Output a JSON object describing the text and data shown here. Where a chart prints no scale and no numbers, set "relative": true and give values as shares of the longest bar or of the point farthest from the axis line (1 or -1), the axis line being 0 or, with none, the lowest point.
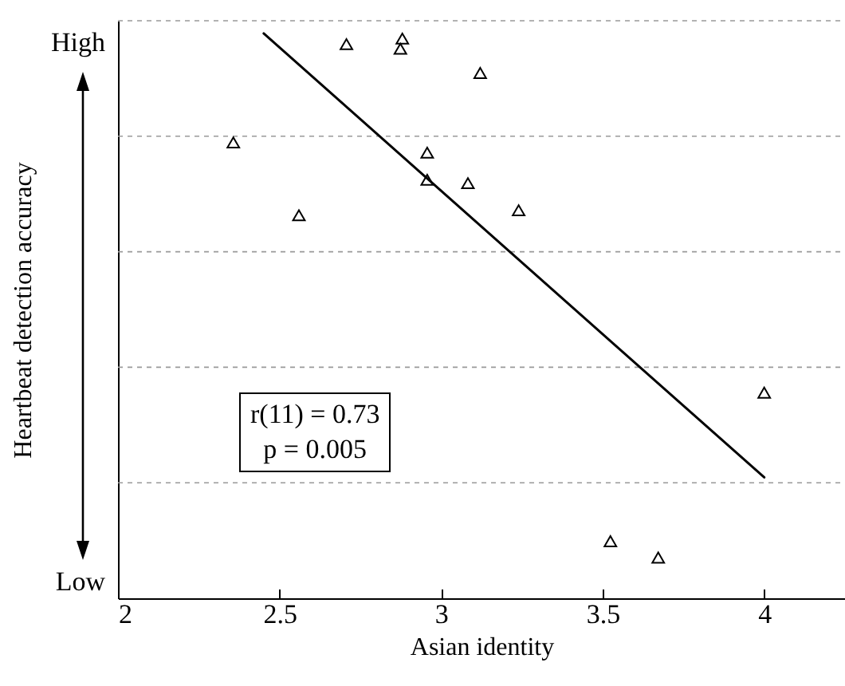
{
  "chart_data": {
    "type": "scatter",
    "relative": true,
    "xlabel": "Asian identity",
    "ylabel": "Heartbeat detection accuracy",
    "xlim": [
      2,
      4.25
    ],
    "xticks": [
      2,
      2.5,
      3,
      3.5,
      4
    ],
    "grid": "y",
    "annotations": [
      "High",
      "Low",
      "r(11) = 0.73",
      "p = 0.005"
    ],
    "series": [
      {
        "marker": "triangle",
        "color": "#000000",
        "x": [
          2.357,
          2.56,
          2.707,
          2.88,
          2.874,
          3.121,
          2.957,
          2.957,
          3.083,
          3.24,
          4.0,
          3.524,
          3.672
        ],
        "values": [
          0.807,
          0.678,
          0.981,
          0.991,
          0.973,
          0.93,
          0.789,
          0.741,
          0.735,
          0.687,
          0.364,
          0.101,
          0.072
        ]
      },
      {
        "type": "line",
        "color": "#000000",
        "line_style": "solid",
        "x": [
          2.451,
          4.0
        ],
        "values": [
          1,
          0.214
        ]
      }
    ]
  }
}
